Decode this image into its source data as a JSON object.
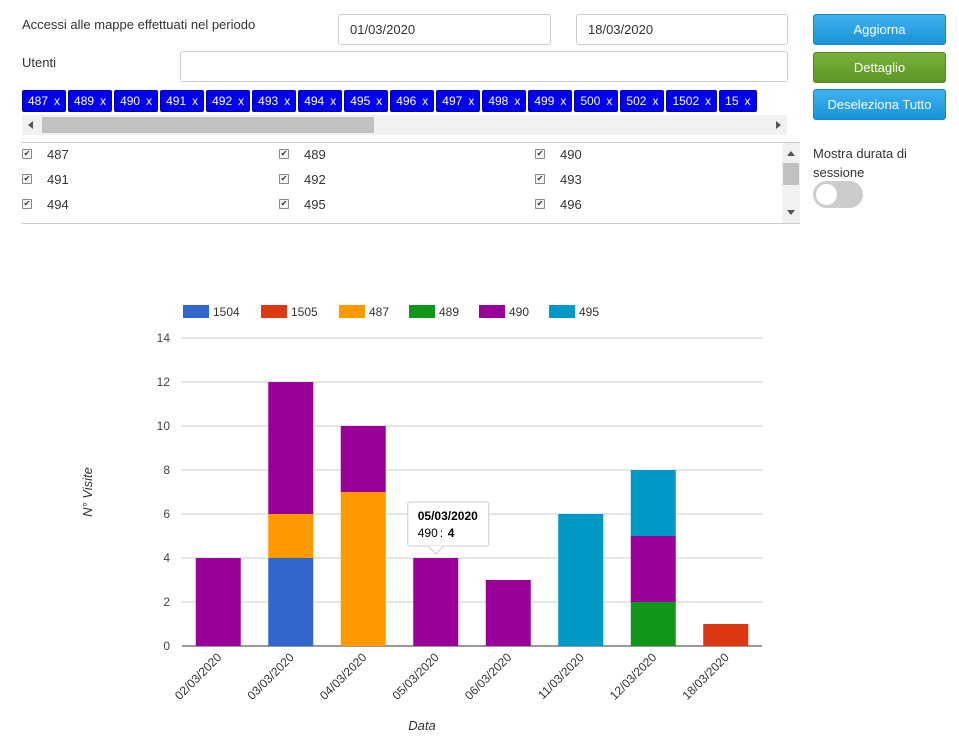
{
  "filters": {
    "period_label": "Accessi alle mappe effettuati nel periodo",
    "date_from": "01/03/2020",
    "date_to": "18/03/2020",
    "users_label": "Utenti",
    "users_value": ""
  },
  "buttons": {
    "update": "Aggiorna",
    "detail": "Dettaglio",
    "deselect_all": "Deseleziona Tutto"
  },
  "tags": [
    "487",
    "489",
    "490",
    "491",
    "492",
    "493",
    "494",
    "495",
    "496",
    "497",
    "498",
    "499",
    "500",
    "502",
    "1502",
    "15"
  ],
  "tag_remove": "x",
  "user_list": [
    "487",
    "489",
    "490",
    "491",
    "492",
    "493",
    "494",
    "495",
    "496"
  ],
  "session_toggle": {
    "label": "Mostra durata di sessione",
    "on": false
  },
  "colors": {
    "1504": "#3366cc",
    "1505": "#dc3912",
    "487": "#ff9900",
    "489": "#109618",
    "490": "#990099",
    "495": "#0099c6"
  },
  "chart_data": {
    "type": "bar",
    "stacked": true,
    "xlabel": "Data",
    "ylabel": "N° Visite",
    "ylim": [
      0,
      14
    ],
    "yticks": [
      0,
      2,
      4,
      6,
      8,
      10,
      12,
      14
    ],
    "categories": [
      "02/03/2020",
      "03/03/2020",
      "04/03/2020",
      "05/03/2020",
      "06/03/2020",
      "11/03/2020",
      "12/03/2020",
      "18/03/2020"
    ],
    "series": [
      {
        "name": "1504",
        "values": [
          0,
          4,
          0,
          0,
          0,
          0,
          0,
          0
        ]
      },
      {
        "name": "1505",
        "values": [
          0,
          0,
          0,
          0,
          0,
          0,
          0,
          1
        ]
      },
      {
        "name": "487",
        "values": [
          0,
          2,
          7,
          0,
          0,
          0,
          0,
          0
        ]
      },
      {
        "name": "489",
        "values": [
          0,
          0,
          0,
          0,
          0,
          0,
          2,
          0
        ]
      },
      {
        "name": "490",
        "values": [
          4,
          6,
          3,
          4,
          3,
          0,
          3,
          0
        ]
      },
      {
        "name": "495",
        "values": [
          0,
          0,
          0,
          0,
          0,
          6,
          3,
          0
        ]
      }
    ],
    "tooltip": {
      "title": "05/03/2020",
      "series": "490",
      "value": "4"
    }
  }
}
